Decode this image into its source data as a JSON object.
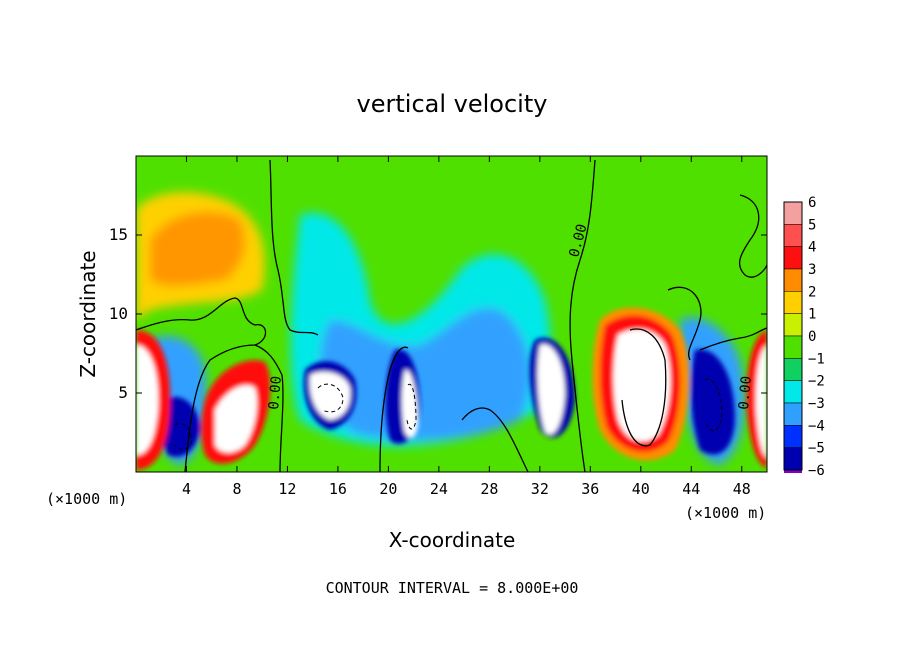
{
  "chart_data": {
    "type": "heatmap",
    "title": "vertical velocity",
    "xlabel": "X-coordinate",
    "ylabel": "Z-coordinate",
    "x_unit_label": "(×1000 m)",
    "x_unit_label_right": "(×1000 m)",
    "xlim": [
      0,
      50
    ],
    "ylim": [
      0,
      20
    ],
    "xticks": [
      4,
      8,
      12,
      16,
      20,
      24,
      28,
      32,
      36,
      40,
      44,
      48
    ],
    "yticks": [
      5,
      10,
      15
    ],
    "colorbar": {
      "levels": [
        6,
        5,
        4,
        3,
        2,
        1,
        0,
        -1,
        -2,
        -3,
        -4,
        -5,
        -6
      ],
      "colors": [
        "#f4a0a0",
        "#ff5050",
        "#ff1010",
        "#ff8c00",
        "#ffd000",
        "#c8f000",
        "#50e000",
        "#10d060",
        "#00e8e8",
        "#30a0ff",
        "#0030ff",
        "#0000b0",
        "#8000c0"
      ]
    },
    "contour_labels": [
      "0.00",
      "0.00",
      "0.00"
    ],
    "footer": "CONTOUR INTERVAL = 8.000E+00"
  }
}
